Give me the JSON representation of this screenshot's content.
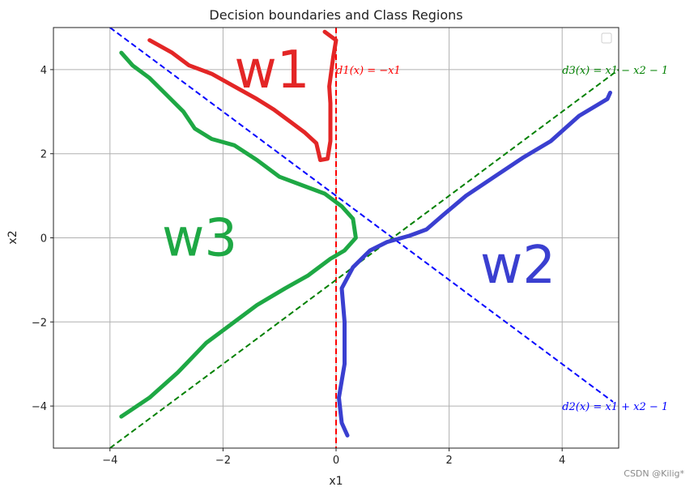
{
  "chart_data": {
    "type": "line",
    "title": "Decision boundaries and Class Regions",
    "xlabel": "x1",
    "ylabel": "x2",
    "xlim": [
      -5,
      5
    ],
    "ylim": [
      -5,
      5
    ],
    "xticks": [
      -4,
      -2,
      0,
      2,
      4
    ],
    "yticks": [
      -4,
      -2,
      0,
      2,
      4
    ],
    "xtick_labels": [
      "−4",
      "−2",
      "0",
      "2",
      "4"
    ],
    "ytick_labels": [
      "−4",
      "−2",
      "0",
      "2",
      "4"
    ],
    "grid": true,
    "legend": "upper-right, empty",
    "boundaries": [
      {
        "id": "d1",
        "label": "d1(x) = −x1",
        "color": "#ff0000",
        "style": "dashed",
        "vertical": true,
        "x": 0,
        "label_pos": [
          0,
          4
        ]
      },
      {
        "id": "d2",
        "label": "d2(x) = x1 + x2 − 1",
        "color": "#0000ff",
        "style": "dashed",
        "x": [
          -4,
          4.9
        ],
        "y": [
          5,
          -3.9
        ],
        "label_pos": [
          4,
          -4
        ]
      },
      {
        "id": "d3",
        "label": "d3(x) = x1 − x2 − 1",
        "color": "#008000",
        "style": "dashed",
        "x": [
          -4,
          5
        ],
        "y": [
          -5,
          4
        ],
        "label_pos": [
          4,
          4
        ]
      }
    ],
    "region_labels": [
      {
        "text": "w1",
        "color": "#e32626",
        "pos": [
          -1.8,
          4.0
        ]
      },
      {
        "text": "w2",
        "color": "#3a3fd0",
        "pos": [
          2.55,
          -0.65
        ]
      },
      {
        "text": "w3",
        "color": "#1ea844",
        "pos": [
          -3.08,
          0.0
        ]
      }
    ],
    "region_outlines": [
      {
        "name": "w1",
        "color": "#e32626",
        "points": [
          [
            -3.3,
            4.7
          ],
          [
            -2.9,
            4.4
          ],
          [
            -2.6,
            4.1
          ],
          [
            -2.2,
            3.9
          ],
          [
            -1.8,
            3.6
          ],
          [
            -1.4,
            3.3
          ],
          [
            -1.1,
            3.05
          ],
          [
            -0.8,
            2.75
          ],
          [
            -0.55,
            2.5
          ],
          [
            -0.35,
            2.25
          ],
          [
            -0.28,
            1.85
          ],
          [
            -0.15,
            1.88
          ],
          [
            -0.1,
            2.3
          ],
          [
            -0.1,
            3.2
          ],
          [
            -0.12,
            3.6
          ],
          [
            -0.05,
            4.3
          ],
          [
            0.0,
            4.7
          ],
          [
            -0.2,
            4.9
          ]
        ]
      },
      {
        "name": "w2",
        "color": "#3a3fd0",
        "points": [
          [
            0.2,
            -4.7
          ],
          [
            0.1,
            -4.4
          ],
          [
            0.05,
            -3.8
          ],
          [
            0.15,
            -3.0
          ],
          [
            0.15,
            -2.0
          ],
          [
            0.1,
            -1.2
          ],
          [
            0.3,
            -0.7
          ],
          [
            0.6,
            -0.3
          ],
          [
            0.9,
            -0.1
          ],
          [
            1.3,
            0.05
          ],
          [
            1.6,
            0.2
          ],
          [
            1.9,
            0.55
          ],
          [
            2.3,
            1.0
          ],
          [
            2.8,
            1.45
          ],
          [
            3.3,
            1.9
          ],
          [
            3.8,
            2.3
          ],
          [
            4.3,
            2.9
          ],
          [
            4.8,
            3.3
          ],
          [
            4.85,
            3.45
          ]
        ]
      },
      {
        "name": "w3",
        "color": "#1ea844",
        "points": [
          [
            -3.8,
            4.4
          ],
          [
            -3.6,
            4.1
          ],
          [
            -3.3,
            3.8
          ],
          [
            -3.0,
            3.4
          ],
          [
            -2.7,
            3.0
          ],
          [
            -2.5,
            2.6
          ],
          [
            -2.2,
            2.35
          ],
          [
            -1.8,
            2.2
          ],
          [
            -1.4,
            1.85
          ],
          [
            -1.0,
            1.45
          ],
          [
            -0.6,
            1.25
          ],
          [
            -0.2,
            1.05
          ],
          [
            0.1,
            0.75
          ],
          [
            0.3,
            0.45
          ],
          [
            0.35,
            0.0
          ],
          [
            0.15,
            -0.3
          ],
          [
            -0.1,
            -0.5
          ],
          [
            -0.5,
            -0.9
          ],
          [
            -0.9,
            -1.2
          ],
          [
            -1.4,
            -1.6
          ],
          [
            -1.9,
            -2.1
          ],
          [
            -2.3,
            -2.5
          ],
          [
            -2.8,
            -3.2
          ],
          [
            -3.3,
            -3.8
          ],
          [
            -3.8,
            -4.25
          ]
        ]
      }
    ]
  },
  "watermark": "CSDN @Kilig*"
}
